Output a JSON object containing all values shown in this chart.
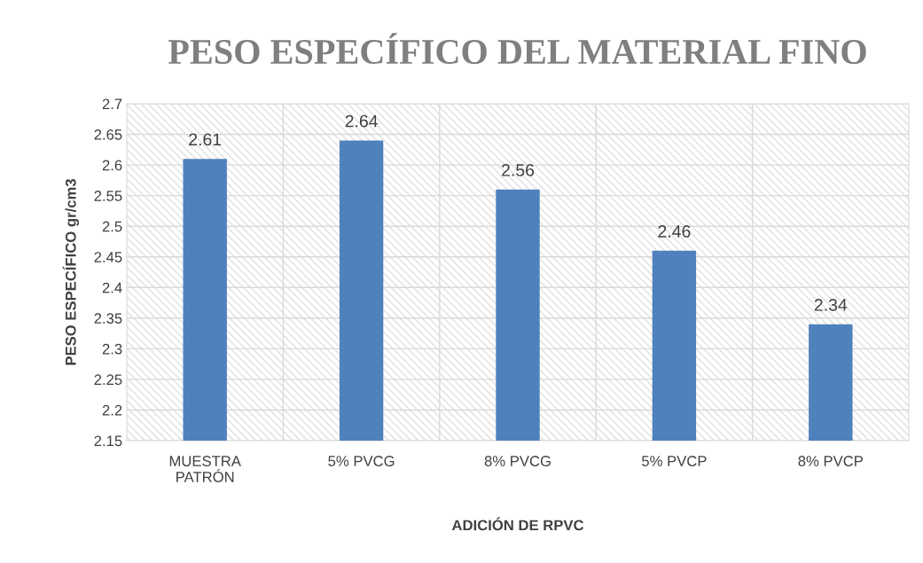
{
  "chart_data": {
    "type": "bar",
    "title": "PESO ESPECÍFICO DEL MATERIAL FINO",
    "xlabel": "ADICIÓN DE RPVC",
    "ylabel": "PESO ESPECÍFICO gr/cm3",
    "categories": [
      "MUESTRA PATRÓN",
      "5% PVCG",
      "8% PVCG",
      "5% PVCP",
      "8% PVCP"
    ],
    "values": [
      2.61,
      2.64,
      2.56,
      2.46,
      2.34
    ],
    "color": "#4f81bd",
    "ylim": [
      2.15,
      2.7
    ],
    "yticks": [
      2.15,
      2.2,
      2.25,
      2.3,
      2.35,
      2.4,
      2.45,
      2.5,
      2.55,
      2.6,
      2.65,
      2.7
    ],
    "grid": true,
    "data_labels": true
  }
}
